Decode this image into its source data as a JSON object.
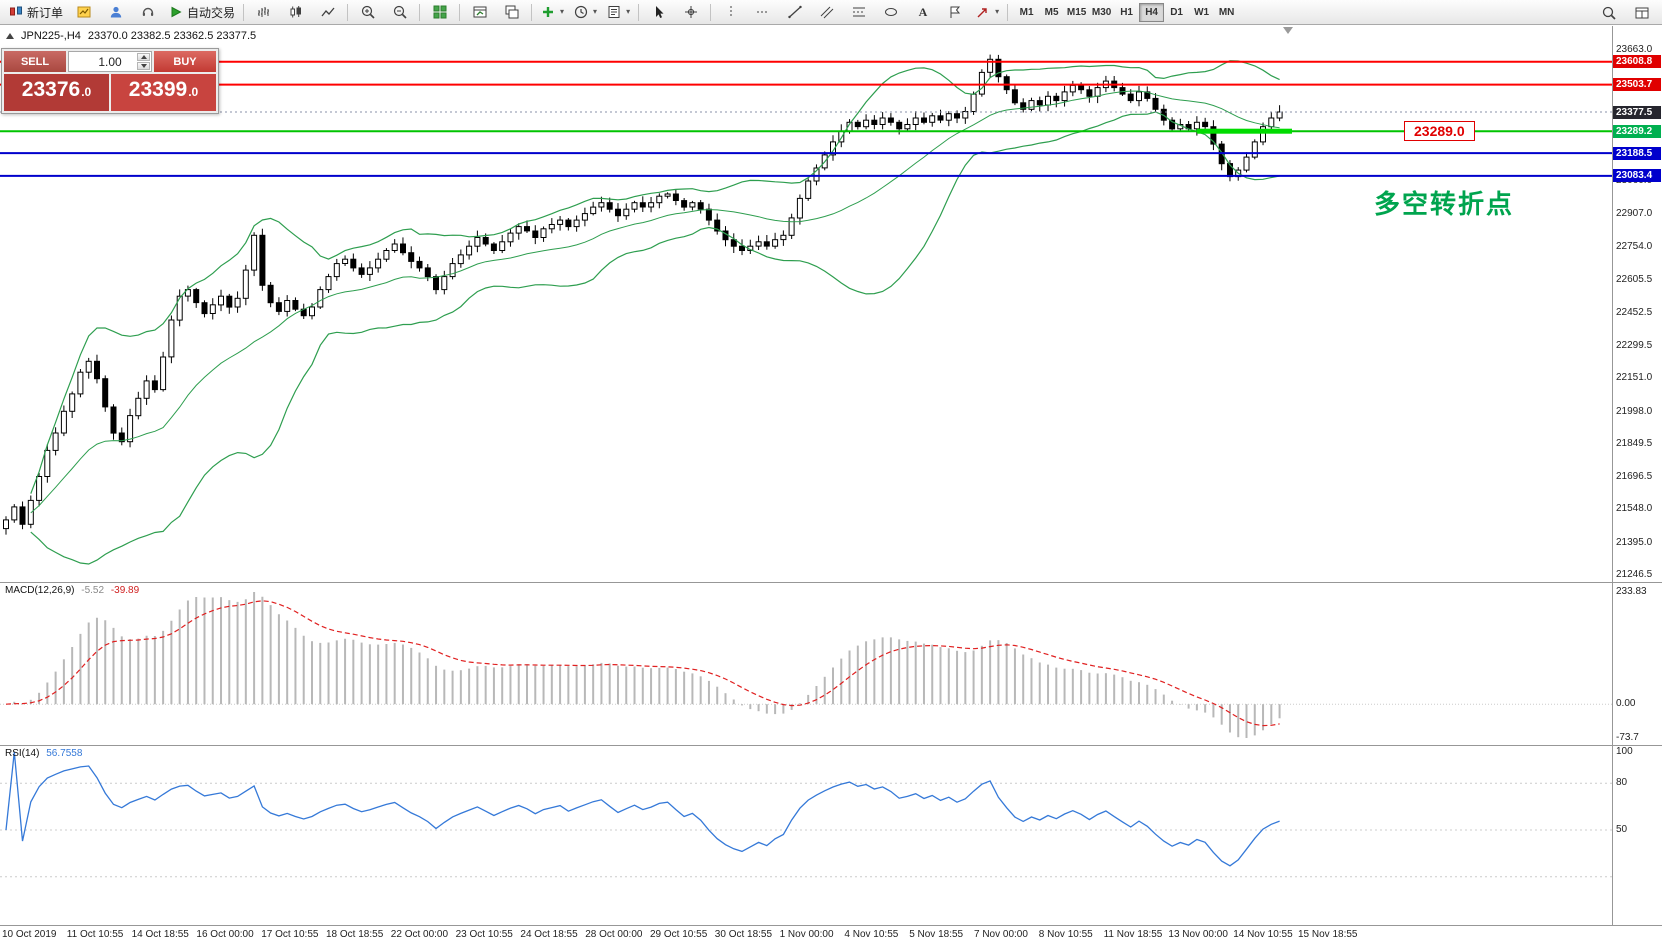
{
  "toolbar": {
    "new_order_label": "新订单",
    "autotrading_label": "自动交易",
    "timeframes": [
      "M1",
      "M5",
      "M15",
      "M30",
      "H1",
      "H4",
      "D1",
      "W1",
      "MN"
    ],
    "active_timeframe": "H4"
  },
  "chart": {
    "symbol_period": "JPN225-,H4",
    "ohlc": "23370.0 23382.5 23362.5 23377.5",
    "one_click": {
      "sell_label": "SELL",
      "buy_label": "BUY",
      "volume": "1.00",
      "sell_price_main": "23376",
      "sell_price_frac": ".0",
      "buy_price_main": "23399",
      "buy_price_frac": ".0"
    },
    "annotation_text": "多空转折点",
    "price_callout": "23289.0",
    "levels": [
      {
        "price": "23608.8",
        "label": "23608.8",
        "color": "#ff0000",
        "tag": "#e00000",
        "width": 2
      },
      {
        "price": "23503.7",
        "label": "23503.7",
        "color": "#ff0000",
        "tag": "#e00000",
        "width": 2
      },
      {
        "price": "23289.2",
        "label": "23289.2",
        "color": "#00c400",
        "tag": "#00b050",
        "width": 2,
        "thick_segment": true
      },
      {
        "price": "23188.5",
        "label": "23188.5",
        "color": "#0000cc",
        "tag": "#0000cc",
        "width": 2
      },
      {
        "price": "23083.4",
        "label": "23083.4",
        "color": "#0000cc",
        "tag": "#0000cc",
        "width": 2
      }
    ],
    "current_price": {
      "value": "23377.5",
      "label": "23377.5",
      "tag": "#26262e"
    },
    "price_axis_labels": [
      "23663.0",
      "23060.0",
      "22907.0",
      "22754.0",
      "22605.5",
      "22452.5",
      "22299.5",
      "22151.0",
      "21998.0",
      "21849.5",
      "21696.5",
      "21548.0",
      "21395.0",
      "21246.5"
    ]
  },
  "chart_data": {
    "type": "candlestick",
    "symbol": "JPN225-",
    "timeframe": "H4",
    "price_range": [
      21246.5,
      23663.0
    ],
    "closes": [
      21500,
      21560,
      21480,
      21590,
      21700,
      21820,
      21900,
      22000,
      22080,
      22180,
      22230,
      22150,
      22020,
      21900,
      21860,
      21980,
      22060,
      22140,
      22100,
      22250,
      22420,
      22530,
      22560,
      22500,
      22450,
      22490,
      22530,
      22480,
      22520,
      22650,
      22810,
      22580,
      22500,
      22460,
      22510,
      22470,
      22440,
      22480,
      22560,
      22620,
      22680,
      22700,
      22660,
      22630,
      22660,
      22700,
      22740,
      22770,
      22730,
      22690,
      22660,
      22620,
      22560,
      22620,
      22680,
      22720,
      22760,
      22800,
      22770,
      22740,
      22780,
      22820,
      22850,
      22830,
      22800,
      22840,
      22860,
      22880,
      22850,
      22880,
      22910,
      22940,
      22960,
      22930,
      22900,
      22930,
      22960,
      22940,
      22960,
      22990,
      23000,
      22970,
      22940,
      22960,
      22930,
      22880,
      22830,
      22790,
      22760,
      22740,
      22760,
      22780,
      22760,
      22790,
      22810,
      22890,
      22980,
      23060,
      23120,
      23180,
      23240,
      23290,
      23330,
      23310,
      23340,
      23320,
      23350,
      23330,
      23300,
      23320,
      23350,
      23330,
      23360,
      23340,
      23370,
      23350,
      23380,
      23460,
      23560,
      23620,
      23540,
      23480,
      23420,
      23390,
      23430,
      23410,
      23450,
      23430,
      23470,
      23500,
      23480,
      23450,
      23490,
      23520,
      23490,
      23460,
      23430,
      23470,
      23440,
      23390,
      23340,
      23300,
      23320,
      23300,
      23330,
      23310,
      23230,
      23140,
      23080,
      23110,
      23170,
      23240,
      23310,
      23350,
      23377.5
    ],
    "indicators": {
      "bollinger": {
        "period": 20,
        "deviation": 2,
        "color": "#2e9e4f"
      },
      "macd": {
        "label": "MACD(12,26,9)",
        "fast": 12,
        "slow": 26,
        "signal": 9,
        "main_value": "-5.52",
        "signal_value": "-39.89",
        "axis_labels": [
          "233.83",
          "0.00",
          "-73.7"
        ]
      },
      "rsi": {
        "label": "RSI(14)",
        "period": 14,
        "value": "56.7558",
        "axis_labels": [
          "100",
          "80",
          "50"
        ],
        "levels": [
          80,
          50,
          20
        ]
      }
    },
    "x_axis_labels": [
      "10 Oct 2019",
      "11 Oct 10:55",
      "14 Oct 18:55",
      "16 Oct 00:00",
      "17 Oct 10:55",
      "18 Oct 18:55",
      "22 Oct 00:00",
      "23 Oct 10:55",
      "24 Oct 18:55",
      "28 Oct 00:00",
      "29 Oct 10:55",
      "30 Oct 18:55",
      "1 Nov 00:00",
      "4 Nov 10:55",
      "5 Nov 18:55",
      "7 Nov 00:00",
      "8 Nov 10:55",
      "11 Nov 18:55",
      "13 Nov 00:00",
      "14 Nov 10:55",
      "15 Nov 18:55"
    ]
  }
}
